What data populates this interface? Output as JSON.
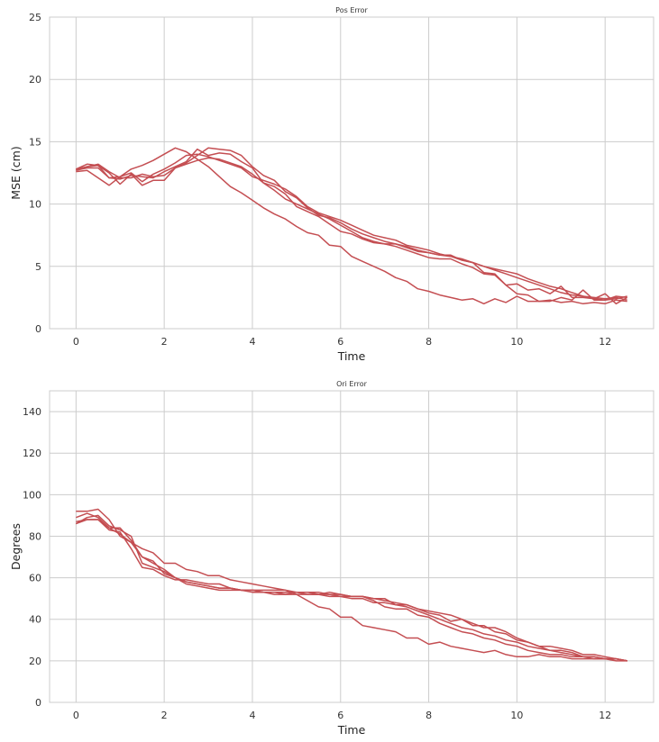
{
  "colors": {
    "series": "#c44e52",
    "grid": "#cccccc"
  },
  "chart_data": [
    {
      "type": "line",
      "title": "Pos Error",
      "xlabel": "Time",
      "ylabel": "MSE (cm)",
      "xlim": [
        -0.6,
        13.1
      ],
      "ylim": [
        0,
        25
      ],
      "xticks": [
        0,
        2,
        4,
        6,
        8,
        10,
        12
      ],
      "yticks": [
        0,
        5,
        10,
        15,
        20,
        25
      ],
      "grid": true,
      "x": [
        0,
        0.25,
        0.5,
        0.75,
        1,
        1.25,
        1.5,
        1.75,
        2,
        2.25,
        2.5,
        2.75,
        3,
        3.25,
        3.5,
        3.75,
        4,
        4.25,
        4.5,
        4.75,
        5,
        5.25,
        5.5,
        5.75,
        6,
        6.25,
        6.5,
        6.75,
        7,
        7.25,
        7.5,
        7.75,
        8,
        8.25,
        8.5,
        8.75,
        9,
        9.25,
        9.5,
        9.75,
        10,
        10.25,
        10.5,
        10.75,
        11,
        11.25,
        11.5,
        11.75,
        12,
        12.25,
        12.5
      ],
      "series": [
        {
          "values": [
            12.6,
            12.7,
            12.1,
            11.5,
            12.2,
            12.8,
            13.1,
            13.5,
            14.0,
            14.5,
            14.2,
            13.6,
            13.0,
            12.2,
            11.4,
            10.9,
            10.3,
            9.7,
            9.2,
            8.8,
            8.2,
            7.7,
            7.5,
            6.7,
            6.6,
            5.8,
            5.4,
            5.0,
            4.6,
            4.1,
            3.8,
            3.2,
            3.0,
            2.7,
            2.5,
            2.3,
            2.4,
            2.0,
            2.4,
            2.1,
            2.6,
            2.2,
            2.2,
            2.3,
            2.1,
            2.2,
            2.0,
            2.1,
            2.0,
            2.3,
            2.2
          ]
        },
        {
          "values": [
            12.8,
            13.2,
            13.1,
            12.1,
            12.2,
            12.5,
            11.8,
            12.4,
            12.8,
            13.3,
            13.9,
            14.0,
            13.8,
            13.5,
            13.2,
            12.9,
            12.2,
            11.9,
            11.6,
            11.2,
            10.6,
            9.8,
            9.3,
            9.0,
            8.7,
            8.3,
            7.9,
            7.5,
            7.3,
            7.1,
            6.7,
            6.5,
            6.3,
            6.0,
            5.8,
            5.5,
            5.3,
            5.0,
            4.7,
            4.4,
            4.1,
            3.8,
            3.5,
            3.2,
            2.9,
            2.7,
            2.6,
            2.4,
            2.3,
            2.4,
            2.6
          ]
        },
        {
          "values": [
            12.7,
            13.0,
            13.1,
            12.5,
            11.6,
            12.4,
            11.5,
            11.9,
            11.9,
            12.9,
            13.3,
            13.9,
            14.5,
            14.4,
            14.3,
            13.9,
            13.0,
            12.3,
            11.9,
            11.0,
            10.5,
            9.7,
            9.1,
            8.9,
            8.5,
            8.0,
            7.6,
            7.3,
            7.0,
            6.8,
            6.5,
            6.2,
            6.1,
            5.9,
            5.8,
            5.6,
            5.3,
            5.0,
            4.8,
            4.6,
            4.4,
            4.0,
            3.7,
            3.4,
            3.2,
            2.9,
            2.6,
            2.5,
            2.4,
            2.5,
            2.3
          ]
        },
        {
          "values": [
            12.8,
            13.0,
            13.2,
            12.6,
            12.1,
            12.1,
            12.4,
            12.2,
            12.3,
            12.9,
            13.2,
            13.5,
            13.7,
            13.6,
            13.3,
            13.0,
            12.4,
            11.7,
            11.1,
            10.4,
            10.0,
            9.6,
            9.2,
            8.8,
            8.3,
            7.8,
            7.3,
            7.0,
            6.8,
            6.8,
            6.6,
            6.3,
            6.1,
            5.9,
            5.9,
            5.5,
            5.3,
            4.5,
            4.4,
            3.5,
            3.6,
            3.1,
            3.2,
            2.8,
            3.4,
            2.5,
            2.5,
            2.4,
            2.8,
            2.0,
            2.5
          ]
        },
        {
          "values": [
            12.7,
            12.9,
            12.9,
            12.1,
            12.0,
            12.3,
            12.2,
            12.1,
            12.6,
            13.0,
            13.4,
            14.4,
            13.9,
            14.1,
            14.0,
            13.4,
            12.9,
            11.7,
            11.4,
            10.8,
            9.8,
            9.4,
            9.0,
            8.4,
            7.8,
            7.6,
            7.2,
            6.9,
            6.8,
            6.6,
            6.3,
            6.0,
            5.7,
            5.6,
            5.6,
            5.2,
            4.9,
            4.4,
            4.3,
            3.5,
            2.8,
            2.7,
            2.2,
            2.2,
            2.5,
            2.3,
            3.1,
            2.3,
            2.3,
            2.6,
            2.5
          ]
        }
      ]
    },
    {
      "type": "line",
      "title": "Ori Error",
      "xlabel": "Time",
      "ylabel": "Degrees",
      "xlim": [
        -0.6,
        13.1
      ],
      "ylim": [
        0,
        150
      ],
      "xticks": [
        0,
        2,
        4,
        6,
        8,
        10,
        12
      ],
      "yticks": [
        0,
        20,
        40,
        60,
        80,
        100,
        120,
        140
      ],
      "grid": true,
      "x": [
        0,
        0.25,
        0.5,
        0.75,
        1,
        1.25,
        1.5,
        1.75,
        2,
        2.25,
        2.5,
        2.75,
        3,
        3.25,
        3.5,
        3.75,
        4,
        4.25,
        4.5,
        4.75,
        5,
        5.25,
        5.5,
        5.75,
        6,
        6.25,
        6.5,
        6.75,
        7,
        7.25,
        7.5,
        7.75,
        8,
        8.25,
        8.5,
        8.75,
        9,
        9.25,
        9.5,
        9.75,
        10,
        10.25,
        10.5,
        10.75,
        11,
        11.25,
        11.5,
        11.75,
        12,
        12.25,
        12.5
      ],
      "series": [
        {
          "values": [
            92,
            92,
            93,
            88,
            80,
            77,
            74,
            72,
            67,
            67,
            64,
            63,
            61,
            61,
            59,
            58,
            57,
            56,
            55,
            54,
            52,
            49,
            46,
            45,
            41,
            41,
            37,
            36,
            35,
            34,
            31,
            31,
            28,
            29,
            27,
            26,
            25,
            24,
            25,
            23,
            22,
            22,
            23,
            22,
            22,
            21,
            21,
            21,
            21,
            21,
            20
          ]
        },
        {
          "values": [
            87,
            88,
            88,
            84,
            84,
            78,
            70,
            68,
            62,
            60,
            58,
            57,
            56,
            55,
            55,
            54,
            54,
            53,
            53,
            53,
            53,
            52,
            52,
            52,
            52,
            51,
            51,
            50,
            49,
            48,
            47,
            45,
            43,
            42,
            39,
            40,
            37,
            37,
            34,
            33,
            30,
            29,
            27,
            25,
            25,
            24,
            22,
            22,
            21,
            21,
            20
          ]
        },
        {
          "values": [
            86,
            89,
            90,
            85,
            83,
            80,
            67,
            65,
            63,
            60,
            58,
            57,
            56,
            55,
            55,
            54,
            54,
            54,
            54,
            54,
            53,
            53,
            53,
            52,
            51,
            50,
            50,
            48,
            48,
            47,
            46,
            44,
            42,
            40,
            38,
            36,
            35,
            33,
            32,
            30,
            29,
            27,
            26,
            25,
            24,
            23,
            22,
            22,
            21,
            21,
            20
          ]
        },
        {
          "values": [
            89,
            91,
            89,
            84,
            81,
            77,
            70,
            67,
            64,
            60,
            57,
            56,
            55,
            54,
            54,
            54,
            53,
            53,
            52,
            52,
            52,
            52,
            52,
            51,
            51,
            51,
            51,
            49,
            46,
            45,
            45,
            42,
            41,
            38,
            36,
            34,
            33,
            31,
            30,
            28,
            27,
            25,
            24,
            23,
            23,
            22,
            22,
            21,
            21,
            20,
            20
          ]
        },
        {
          "values": [
            86,
            88,
            88,
            83,
            82,
            74,
            65,
            64,
            61,
            59,
            59,
            58,
            57,
            57,
            55,
            54,
            54,
            53,
            53,
            52,
            53,
            53,
            52,
            53,
            52,
            51,
            51,
            50,
            50,
            47,
            47,
            45,
            44,
            43,
            42,
            40,
            38,
            36,
            36,
            34,
            31,
            29,
            27,
            27,
            26,
            25,
            23,
            23,
            22,
            21,
            20
          ]
        }
      ]
    }
  ]
}
